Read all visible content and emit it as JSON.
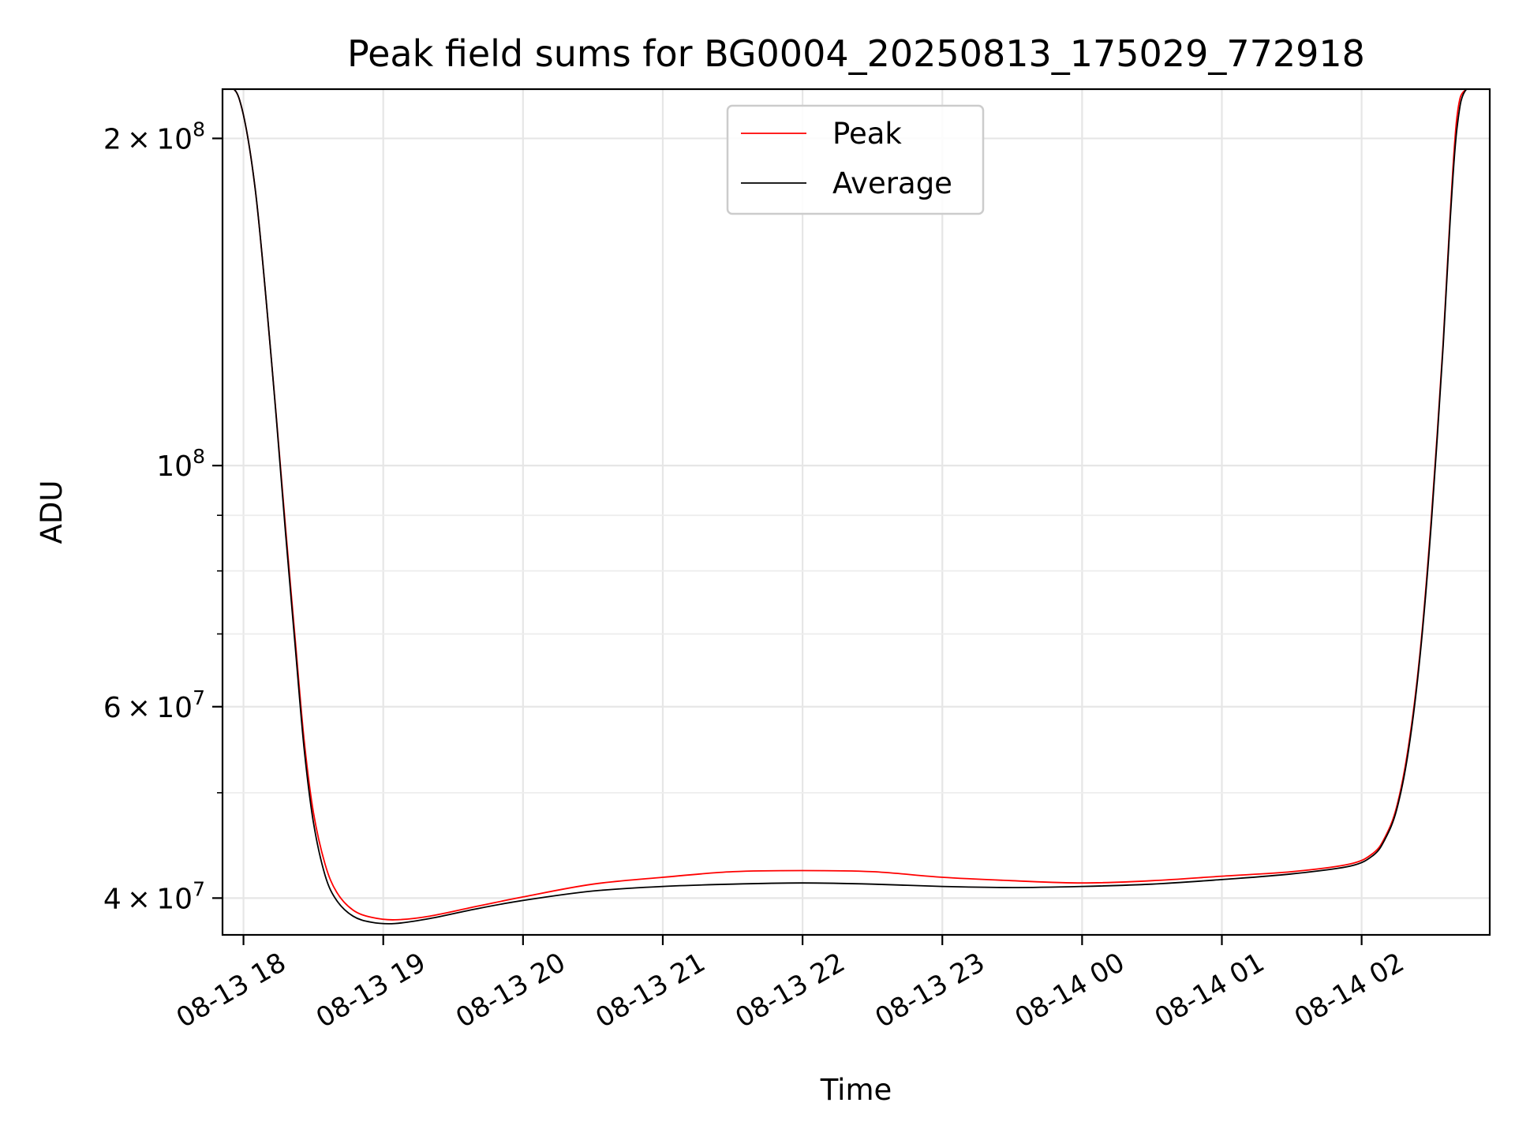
{
  "chart_data": {
    "type": "line",
    "title": "Peak field sums for BG0004_20250813_175029_772918",
    "xlabel": "Time",
    "ylabel": "ADU",
    "y_scale": "log",
    "ylim": [
      37000000,
      222000000
    ],
    "xlim": [
      "2025-08-13 17:51",
      "2025-08-14 02:55"
    ],
    "x_ticks": [
      "2025-08-13 18:00",
      "2025-08-13 19:00",
      "2025-08-13 20:00",
      "2025-08-13 21:00",
      "2025-08-13 22:00",
      "2025-08-13 23:00",
      "2025-08-14 00:00",
      "2025-08-14 01:00",
      "2025-08-14 02:00"
    ],
    "x_tick_labels": [
      "08-13 18",
      "08-13 19",
      "08-13 20",
      "08-13 21",
      "08-13 22",
      "08-13 23",
      "08-14 00",
      "08-14 01",
      "08-14 02"
    ],
    "y_ticks": [
      40000000,
      60000000,
      100000000,
      200000000
    ],
    "y_tick_labels": [
      {
        "mant": "4",
        "exp": "7"
      },
      {
        "mant": "6",
        "exp": "7"
      },
      {
        "mant": "",
        "exp": "8"
      },
      {
        "mant": "2",
        "exp": "8"
      }
    ],
    "y_minor_ticks": [
      50000000,
      70000000,
      80000000,
      90000000
    ],
    "grid": true,
    "legend_position": "upper center",
    "series": [
      {
        "name": "Peak",
        "color": "#ff0000",
        "x": [
          "2025-08-13 17:51",
          "2025-08-13 17:58",
          "2025-08-13 18:05",
          "2025-08-13 18:12",
          "2025-08-13 18:18",
          "2025-08-13 18:22",
          "2025-08-13 18:26",
          "2025-08-13 18:30",
          "2025-08-13 18:35",
          "2025-08-13 18:40",
          "2025-08-13 18:47",
          "2025-08-13 18:55",
          "2025-08-13 19:05",
          "2025-08-13 19:20",
          "2025-08-13 19:40",
          "2025-08-13 20:00",
          "2025-08-13 20:30",
          "2025-08-13 21:00",
          "2025-08-13 21:30",
          "2025-08-13 22:00",
          "2025-08-13 22:30",
          "2025-08-13 23:00",
          "2025-08-13 23:30",
          "2025-08-14 00:00",
          "2025-08-14 00:30",
          "2025-08-14 01:00",
          "2025-08-14 01:30",
          "2025-08-14 01:55",
          "2025-08-14 02:05",
          "2025-08-14 02:10",
          "2025-08-14 02:15",
          "2025-08-14 02:20",
          "2025-08-14 02:25",
          "2025-08-14 02:30",
          "2025-08-14 02:35",
          "2025-08-14 02:38",
          "2025-08-14 02:41",
          "2025-08-14 02:45",
          "2025-08-14 02:55"
        ],
        "values": [
          222000000,
          218000000,
          180000000,
          125000000,
          88000000,
          70000000,
          56000000,
          48000000,
          43000000,
          40500000,
          39000000,
          38400000,
          38200000,
          38500000,
          39300000,
          40100000,
          41200000,
          41800000,
          42300000,
          42400000,
          42300000,
          41800000,
          41500000,
          41300000,
          41500000,
          41900000,
          42300000,
          43000000,
          44000000,
          45500000,
          48500000,
          55000000,
          67000000,
          90000000,
          130000000,
          170000000,
          210000000,
          222000000,
          222000000
        ]
      },
      {
        "name": "Average",
        "color": "#000000",
        "x": [
          "2025-08-13 17:51",
          "2025-08-13 17:58",
          "2025-08-13 18:05",
          "2025-08-13 18:12",
          "2025-08-13 18:18",
          "2025-08-13 18:22",
          "2025-08-13 18:26",
          "2025-08-13 18:30",
          "2025-08-13 18:35",
          "2025-08-13 18:40",
          "2025-08-13 18:47",
          "2025-08-13 18:55",
          "2025-08-13 19:05",
          "2025-08-13 19:20",
          "2025-08-13 19:40",
          "2025-08-13 20:00",
          "2025-08-13 20:30",
          "2025-08-13 21:00",
          "2025-08-13 21:30",
          "2025-08-13 22:00",
          "2025-08-13 22:30",
          "2025-08-13 23:00",
          "2025-08-13 23:30",
          "2025-08-14 00:00",
          "2025-08-14 00:30",
          "2025-08-14 01:00",
          "2025-08-14 01:30",
          "2025-08-14 01:55",
          "2025-08-14 02:05",
          "2025-08-14 02:10",
          "2025-08-14 02:15",
          "2025-08-14 02:20",
          "2025-08-14 02:25",
          "2025-08-14 02:30",
          "2025-08-14 02:35",
          "2025-08-14 02:38",
          "2025-08-14 02:41",
          "2025-08-14 02:45",
          "2025-08-14 02:55"
        ],
        "values": [
          222000000,
          218000000,
          180000000,
          125000000,
          87000000,
          69000000,
          55000000,
          47000000,
          42000000,
          39800000,
          38500000,
          38000000,
          37900000,
          38300000,
          39100000,
          39800000,
          40600000,
          41000000,
          41200000,
          41300000,
          41200000,
          41000000,
          40900000,
          41000000,
          41200000,
          41600000,
          42100000,
          42800000,
          43800000,
          45300000,
          48200000,
          54500000,
          66500000,
          89000000,
          129000000,
          168000000,
          205000000,
          222000000,
          222000000
        ]
      }
    ]
  }
}
